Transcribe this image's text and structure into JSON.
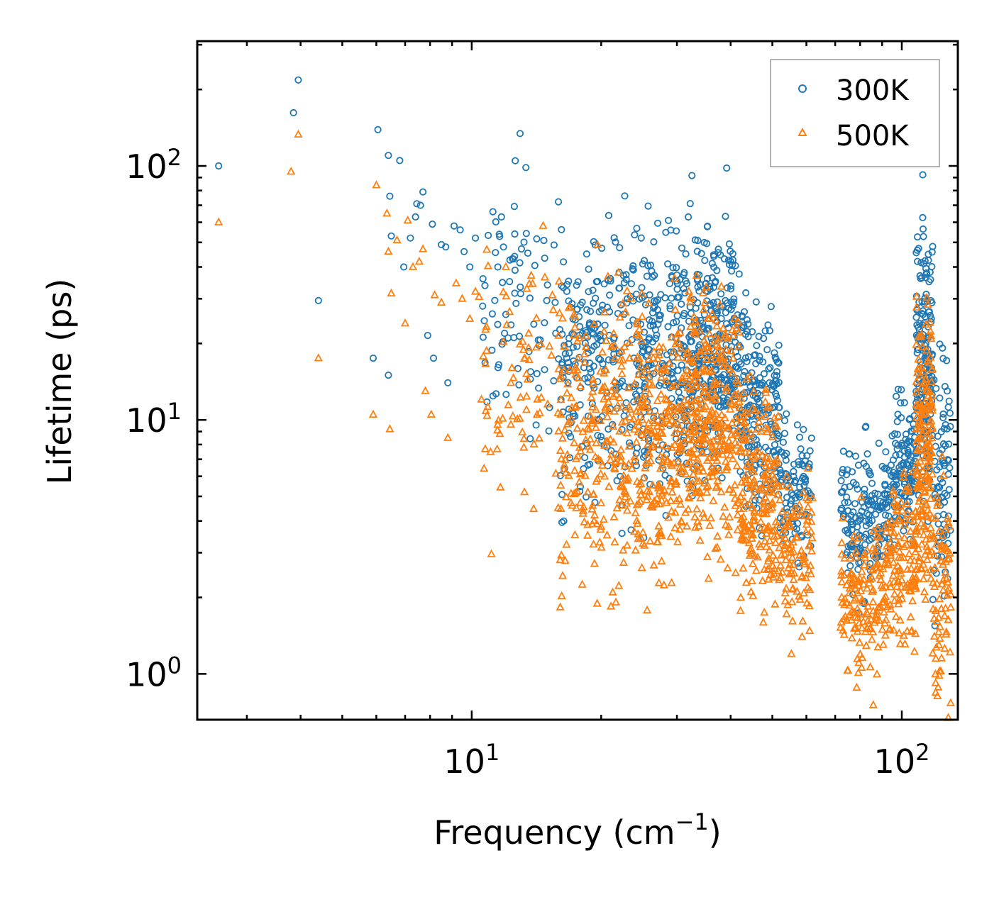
{
  "chart_data": {
    "type": "scatter",
    "title": "",
    "xlabel": "Frequency (cm",
    "xlabel_sup": "−1",
    "xlabel_suffix": ")",
    "ylabel": "Lifetime (ps)",
    "xscale": "log",
    "yscale": "log",
    "xlim": [
      2.3,
      135
    ],
    "ylim": [
      0.66,
      310
    ],
    "x_ticks": [
      {
        "base": "10",
        "exp": "1"
      },
      {
        "base": "10",
        "exp": "2"
      }
    ],
    "y_ticks": [
      {
        "base": "10",
        "exp": "0"
      },
      {
        "base": "10",
        "exp": "1"
      },
      {
        "base": "10",
        "exp": "2"
      }
    ],
    "legend_position": "top-right",
    "colors": {
      "300K": "#1f77b4",
      "500K": "#ff7f0e"
    },
    "series": [
      {
        "name": "300K",
        "marker": "circle",
        "color": "#1f77b4",
        "anchor_points": [
          [
            2.58,
            100
          ],
          [
            3.85,
            162
          ],
          [
            3.95,
            218
          ],
          [
            4.4,
            29.5
          ],
          [
            5.9,
            17.5
          ],
          [
            6.05,
            139
          ],
          [
            6.4,
            15
          ],
          [
            6.4,
            110
          ],
          [
            6.45,
            76
          ],
          [
            6.5,
            53
          ],
          [
            6.8,
            105
          ],
          [
            6.95,
            40
          ],
          [
            7.2,
            52
          ],
          [
            7.4,
            63
          ],
          [
            7.45,
            71
          ],
          [
            7.6,
            70
          ],
          [
            7.7,
            79
          ],
          [
            7.9,
            21.5
          ],
          [
            8.1,
            59
          ],
          [
            8.15,
            17.5
          ],
          [
            8.5,
            49
          ],
          [
            8.7,
            48
          ],
          [
            8.8,
            14
          ],
          [
            9.1,
            58
          ],
          [
            9.4,
            56
          ],
          [
            9.6,
            46
          ],
          [
            9.9,
            40
          ],
          [
            10.2,
            52
          ],
          [
            11.2,
            66
          ],
          [
            11.5,
            40
          ],
          [
            12.5,
            43
          ],
          [
            15,
            34
          ],
          [
            18.5,
            45
          ],
          [
            19.5,
            35
          ],
          [
            21,
            36
          ],
          [
            22,
            33
          ],
          [
            23,
            30
          ],
          [
            25.7,
            40.5
          ],
          [
            30.8,
            47.5
          ],
          [
            31.2,
            38
          ]
        ],
        "clusters": [
          {
            "x_range": [
              10.5,
              16
            ],
            "y_center": 28,
            "y_spread": 0.28,
            "count": 80
          },
          {
            "x_range": [
              16,
              24
            ],
            "y_center": 16,
            "y_spread": 0.3,
            "count": 220
          },
          {
            "x_range": [
              24,
              32
            ],
            "y_center": 17,
            "y_spread": 0.28,
            "count": 240
          },
          {
            "x_range": [
              32,
              42
            ],
            "y_center": 19,
            "y_spread": 0.26,
            "count": 300
          },
          {
            "x_range": [
              42,
              52
            ],
            "y_center": 11,
            "y_spread": 0.22,
            "count": 200
          },
          {
            "x_range": [
              52,
              62
            ],
            "y_center": 5.2,
            "y_spread": 0.16,
            "count": 100
          },
          {
            "x_range": [
              72,
              95
            ],
            "y_center": 4.2,
            "y_spread": 0.17,
            "count": 180
          },
          {
            "x_range": [
              95,
              108
            ],
            "y_center": 6.5,
            "y_spread": 0.14,
            "count": 120
          },
          {
            "x_range": [
              108,
              118
            ],
            "y_center": 18,
            "y_spread": 0.3,
            "count": 180
          },
          {
            "x_range": [
              118,
              130
            ],
            "y_center": 6,
            "y_spread": 0.28,
            "count": 80
          }
        ]
      },
      {
        "name": "500K",
        "marker": "triangle",
        "color": "#ff7f0e",
        "anchor_points": [
          [
            2.58,
            60
          ],
          [
            3.8,
            95
          ],
          [
            3.95,
            133
          ],
          [
            4.4,
            17.5
          ],
          [
            5.9,
            10.5
          ],
          [
            6.0,
            84
          ],
          [
            6.35,
            65
          ],
          [
            6.4,
            46
          ],
          [
            6.45,
            9.2
          ],
          [
            6.5,
            31.5
          ],
          [
            6.7,
            51
          ],
          [
            7.0,
            24
          ],
          [
            7.1,
            61
          ],
          [
            7.3,
            40
          ],
          [
            7.55,
            42
          ],
          [
            7.7,
            47
          ],
          [
            7.8,
            13
          ],
          [
            8.05,
            10.5
          ],
          [
            8.2,
            31
          ],
          [
            8.5,
            29
          ],
          [
            8.8,
            8.5
          ],
          [
            9.2,
            34.5
          ],
          [
            9.5,
            30
          ],
          [
            9.9,
            25
          ],
          [
            10.2,
            32
          ],
          [
            10.4,
            30.5
          ],
          [
            12,
            40
          ],
          [
            17.5,
            4.5
          ],
          [
            20,
            3.8
          ],
          [
            21.5,
            3.3
          ],
          [
            25,
            3.6
          ],
          [
            27,
            3.3
          ]
        ],
        "clusters": [
          {
            "x_range": [
              10.5,
              16
            ],
            "y_center": 15,
            "y_spread": 0.3,
            "count": 80
          },
          {
            "x_range": [
              16,
              24
            ],
            "y_center": 8.2,
            "y_spread": 0.32,
            "count": 240
          },
          {
            "x_range": [
              24,
              32
            ],
            "y_center": 8.5,
            "y_spread": 0.3,
            "count": 240
          },
          {
            "x_range": [
              32,
              42
            ],
            "y_center": 10,
            "y_spread": 0.28,
            "count": 300
          },
          {
            "x_range": [
              42,
              52
            ],
            "y_center": 5.2,
            "y_spread": 0.22,
            "count": 200
          },
          {
            "x_range": [
              52,
              62
            ],
            "y_center": 3.1,
            "y_spread": 0.16,
            "count": 100
          },
          {
            "x_range": [
              72,
              92
            ],
            "y_center": 1.9,
            "y_spread": 0.17,
            "count": 160
          },
          {
            "x_range": [
              92,
              108
            ],
            "y_center": 3.0,
            "y_spread": 0.2,
            "count": 130
          },
          {
            "x_range": [
              108,
              118
            ],
            "y_center": 7.5,
            "y_spread": 0.32,
            "count": 180
          },
          {
            "x_range": [
              118,
              130
            ],
            "y_center": 2.2,
            "y_spread": 0.28,
            "count": 80
          }
        ]
      }
    ]
  }
}
